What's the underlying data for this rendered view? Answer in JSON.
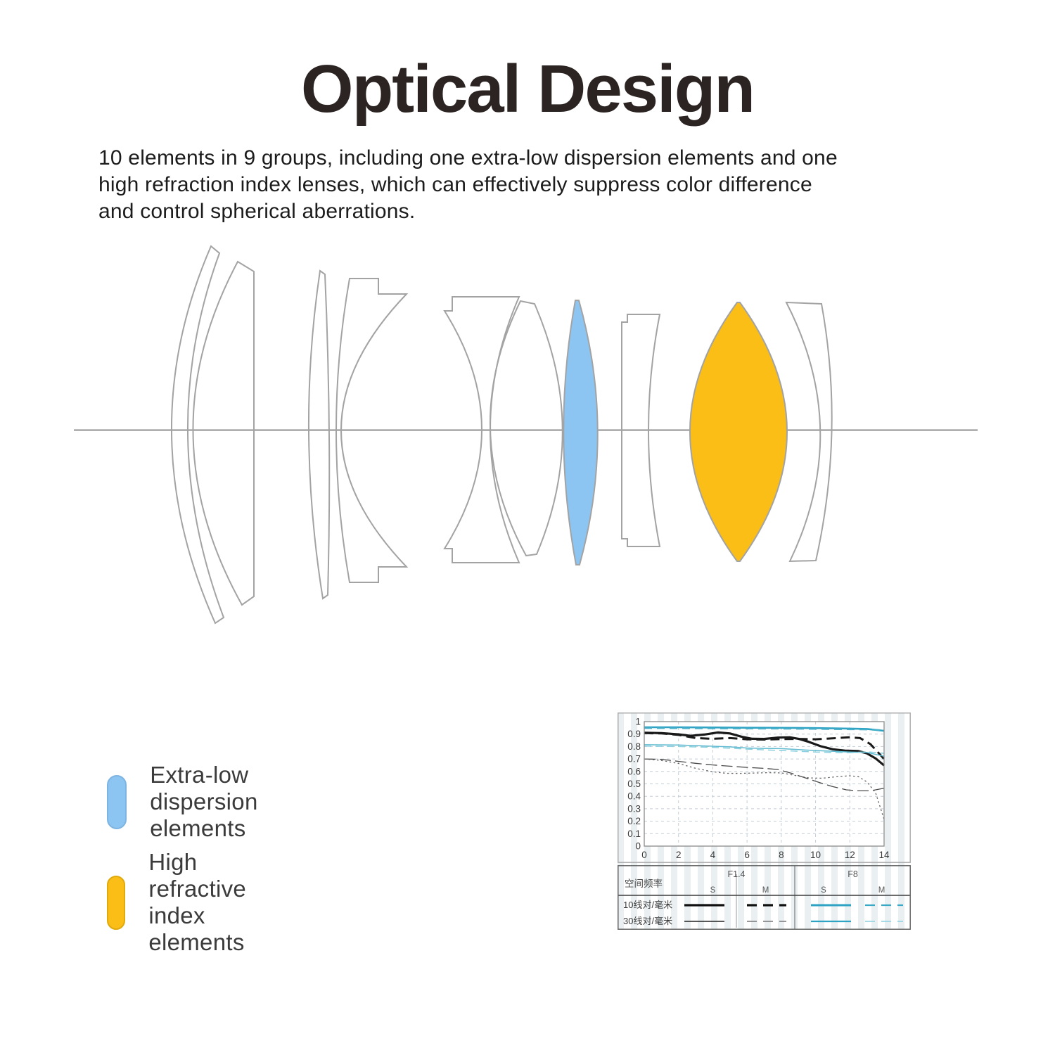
{
  "title": "Optical Design",
  "description": [
    "10 elements in 9 groups, including one extra-low dispersion elements and one",
    "high refraction index lenses, which can effectively suppress color difference",
    "and control spherical aberrations."
  ],
  "legend": {
    "items": [
      {
        "label": "Extra-low dispersion elements",
        "color": "#8CC5F2",
        "border": "#7db4e2"
      },
      {
        "label": "High refractive index elements",
        "color": "#FBBE17",
        "border": "#e0a90c"
      }
    ]
  },
  "colors": {
    "ed_blue": "#8CC5F2",
    "hri_yellow": "#FBBE17",
    "outline": "#a3a3a3",
    "axis_line": "#8f8f8f",
    "grid": "#c4ced6",
    "plot_border": "#8a8a8a",
    "panel_border": "#a9a9a9",
    "tick_text": "#3a3a3a",
    "cyan_thick": "#2EA3C4",
    "black_curve": "#191919"
  },
  "chart_data": {
    "type": "line",
    "title": "MTF chart (contrast vs image height, mm)",
    "xlabel": "",
    "ylabel": "",
    "xlim": [
      0,
      14
    ],
    "ylim": [
      0,
      1
    ],
    "grid": true,
    "legend_position": "table-below",
    "x_ticks": [
      0,
      2,
      4,
      6,
      8,
      10,
      12,
      14
    ],
    "y_tick_values": [
      0,
      0.1,
      0.2,
      0.3,
      0.4,
      0.5,
      0.6,
      0.7,
      0.8,
      0.9,
      1
    ],
    "y_tick_labels": [
      "0",
      "0.1",
      "0.2",
      "0.3",
      "0.4",
      "0.5",
      "0.6",
      "0.7",
      "0.8",
      "0.9",
      "1"
    ],
    "series": [
      {
        "name": "F8 S 10lp/mm",
        "color": "#2EA3C4",
        "width": 2.6,
        "dash": "",
        "points": [
          [
            0,
            0.955
          ],
          [
            2,
            0.955
          ],
          [
            4,
            0.953
          ],
          [
            6,
            0.951
          ],
          [
            8,
            0.95
          ],
          [
            10,
            0.948
          ],
          [
            12,
            0.944
          ],
          [
            13,
            0.941
          ],
          [
            14,
            0.926
          ]
        ]
      },
      {
        "name": "F8 M 10lp/mm",
        "color": "#45AEC9",
        "width": 2.2,
        "dash": "11,7",
        "points": [
          [
            0,
            0.948
          ],
          [
            2,
            0.947
          ],
          [
            4,
            0.945
          ],
          [
            6,
            0.944
          ],
          [
            8,
            0.943
          ],
          [
            10,
            0.941
          ],
          [
            12,
            0.938
          ],
          [
            13,
            0.936
          ],
          [
            14,
            0.931
          ]
        ]
      },
      {
        "name": "F1.4 S 10lp/mm",
        "color": "#191919",
        "width": 3.2,
        "dash": "",
        "points": [
          [
            0,
            0.91
          ],
          [
            1,
            0.908
          ],
          [
            2,
            0.898
          ],
          [
            2.7,
            0.886
          ],
          [
            3.5,
            0.896
          ],
          [
            4.3,
            0.913
          ],
          [
            5,
            0.905
          ],
          [
            5.7,
            0.878
          ],
          [
            6.3,
            0.862
          ],
          [
            7,
            0.861
          ],
          [
            7.8,
            0.872
          ],
          [
            8.5,
            0.874
          ],
          [
            9,
            0.862
          ],
          [
            9.6,
            0.838
          ],
          [
            10.3,
            0.802
          ],
          [
            11,
            0.778
          ],
          [
            11.7,
            0.767
          ],
          [
            12.5,
            0.763
          ],
          [
            13,
            0.745
          ],
          [
            13.5,
            0.705
          ],
          [
            14,
            0.648
          ]
        ]
      },
      {
        "name": "F1.4 M 10lp/mm",
        "color": "#191919",
        "width": 3.0,
        "dash": "13,7",
        "points": [
          [
            0,
            0.908
          ],
          [
            1,
            0.905
          ],
          [
            2,
            0.893
          ],
          [
            3,
            0.868
          ],
          [
            4,
            0.862
          ],
          [
            5,
            0.868
          ],
          [
            6,
            0.858
          ],
          [
            7,
            0.856
          ],
          [
            8,
            0.86
          ],
          [
            9,
            0.861
          ],
          [
            10,
            0.858
          ],
          [
            11,
            0.866
          ],
          [
            12,
            0.874
          ],
          [
            12.6,
            0.868
          ],
          [
            13.2,
            0.82
          ],
          [
            14,
            0.7
          ]
        ]
      },
      {
        "name": "F8 S 30lp/mm",
        "color": "#5FB9CF",
        "width": 1.5,
        "dash": "",
        "points": [
          [
            0,
            0.814
          ],
          [
            2,
            0.812
          ],
          [
            4,
            0.802
          ],
          [
            5,
            0.797
          ],
          [
            6,
            0.788
          ],
          [
            7,
            0.785
          ],
          [
            8,
            0.783
          ],
          [
            9,
            0.775
          ],
          [
            10,
            0.768
          ],
          [
            11,
            0.762
          ],
          [
            12,
            0.756
          ],
          [
            13,
            0.752
          ],
          [
            14,
            0.722
          ]
        ]
      },
      {
        "name": "F8 M 30lp/mm",
        "color": "#8CCFDF",
        "width": 1.5,
        "dash": "10,6",
        "points": [
          [
            0,
            0.803
          ],
          [
            2,
            0.8
          ],
          [
            4,
            0.793
          ],
          [
            6,
            0.779
          ],
          [
            8,
            0.768
          ],
          [
            10,
            0.756
          ],
          [
            11,
            0.752
          ],
          [
            12,
            0.75
          ],
          [
            13,
            0.758
          ],
          [
            14,
            0.745
          ]
        ]
      },
      {
        "name": "F1.4 S 30lp/mm",
        "color": "#4a4a4a",
        "width": 1.3,
        "dash": "16,6",
        "points": [
          [
            0,
            0.7
          ],
          [
            1,
            0.697
          ],
          [
            2,
            0.681
          ],
          [
            3,
            0.665
          ],
          [
            4,
            0.652
          ],
          [
            5,
            0.642
          ],
          [
            6,
            0.632
          ],
          [
            7,
            0.625
          ],
          [
            7.8,
            0.615
          ],
          [
            8.6,
            0.585
          ],
          [
            9.4,
            0.548
          ],
          [
            10.2,
            0.512
          ],
          [
            11,
            0.478
          ],
          [
            11.8,
            0.452
          ],
          [
            12.5,
            0.444
          ],
          [
            13.2,
            0.444
          ],
          [
            14,
            0.465
          ]
        ]
      },
      {
        "name": "F1.4 M 30lp/mm",
        "color": "#666666",
        "width": 1.3,
        "dash": "2.5,3.5",
        "points": [
          [
            0,
            0.7
          ],
          [
            1,
            0.688
          ],
          [
            2,
            0.664
          ],
          [
            3,
            0.625
          ],
          [
            4,
            0.597
          ],
          [
            4.8,
            0.585
          ],
          [
            5.6,
            0.584
          ],
          [
            6.4,
            0.587
          ],
          [
            7.2,
            0.59
          ],
          [
            8,
            0.588
          ],
          [
            8.8,
            0.568
          ],
          [
            9.6,
            0.548
          ],
          [
            10.4,
            0.545
          ],
          [
            11.2,
            0.557
          ],
          [
            12,
            0.565
          ],
          [
            12.5,
            0.558
          ],
          [
            13,
            0.515
          ],
          [
            13.5,
            0.43
          ],
          [
            14,
            0.215
          ]
        ]
      }
    ]
  },
  "mtf_table": {
    "corner_label": "空间频率",
    "groups": [
      "F1.4",
      "F8"
    ],
    "subheaders": [
      "S",
      "M",
      "S",
      "M"
    ],
    "rows": [
      {
        "label": "10线对/毫米",
        "samples": [
          {
            "color": "#111111",
            "width": 3.2,
            "dash": ""
          },
          {
            "color": "#111111",
            "width": 3.2,
            "dash": "14,9"
          },
          {
            "color": "#2EA3C4",
            "width": 3.0,
            "dash": ""
          },
          {
            "color": "#3AA9C6",
            "width": 2.2,
            "dash": "14,9"
          }
        ]
      },
      {
        "label": "30线对/毫米",
        "samples": [
          {
            "color": "#222222",
            "width": 1.5,
            "dash": ""
          },
          {
            "color": "#777777",
            "width": 1.5,
            "dash": "14,9"
          },
          {
            "color": "#2EA3C4",
            "width": 2.2,
            "dash": ""
          },
          {
            "color": "#8CCFDF",
            "width": 1.6,
            "dash": "14,9"
          }
        ]
      }
    ]
  }
}
